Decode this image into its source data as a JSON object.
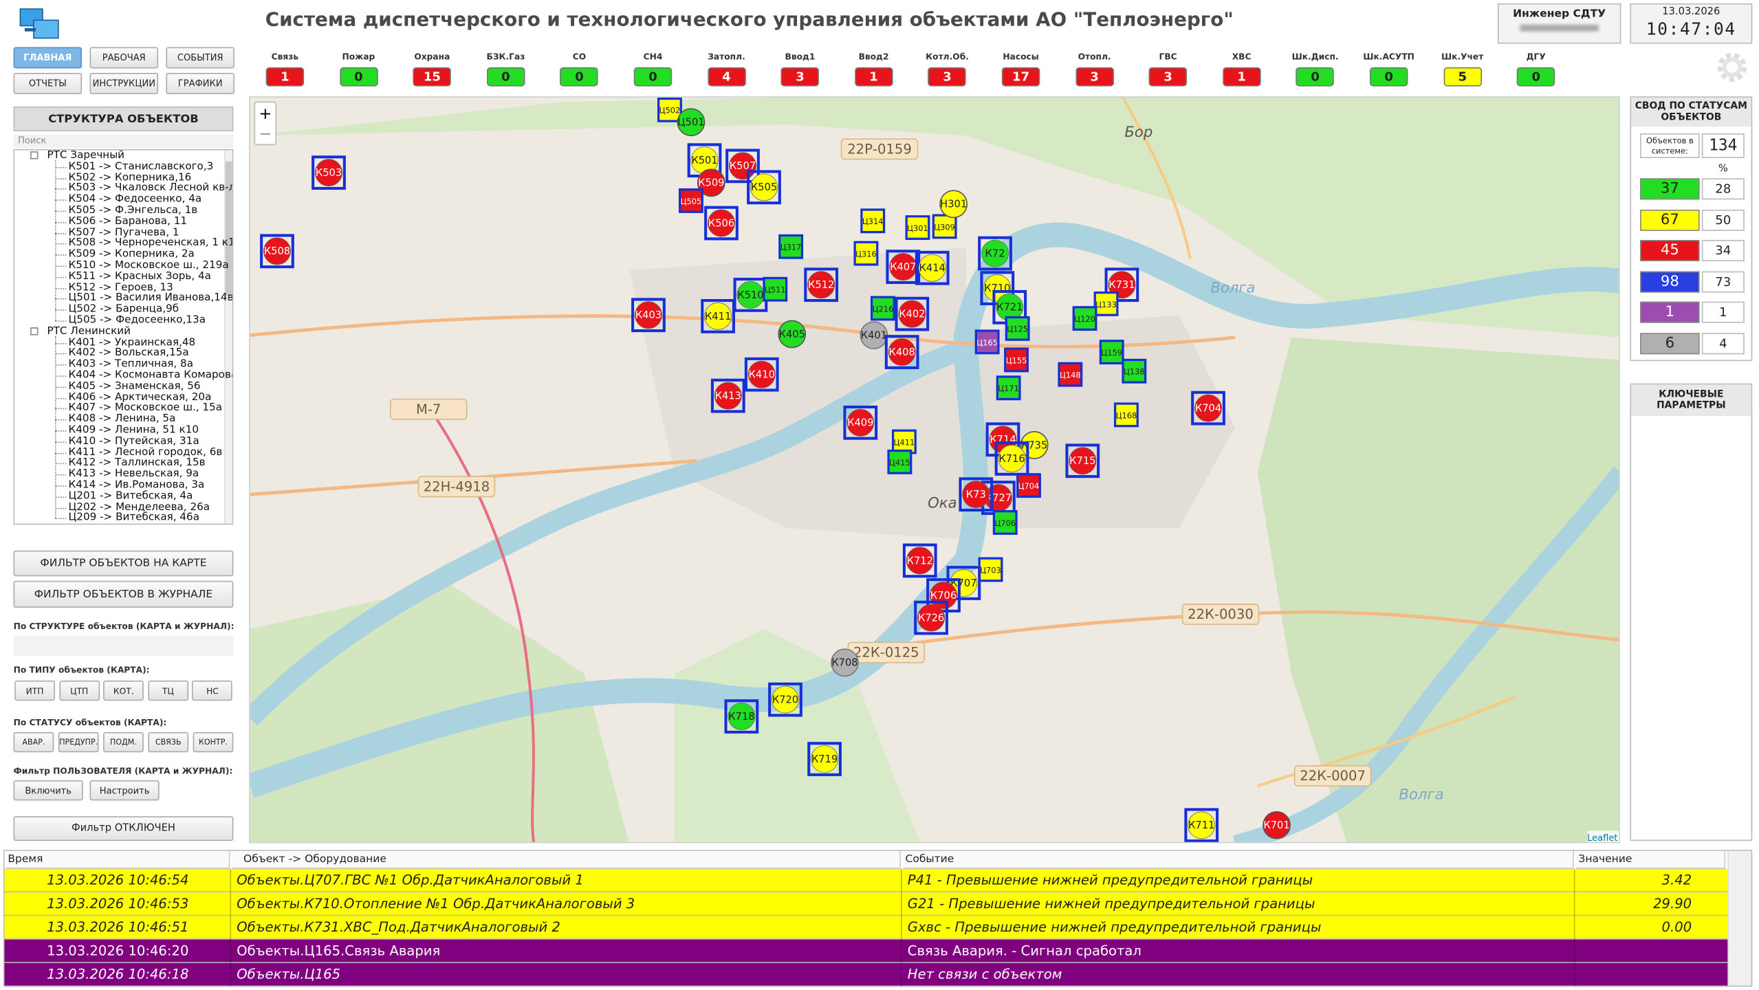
{
  "header": {
    "title": "Система диспетчерского и технологического управления объектами АО \"Теплоэнерго\"",
    "user_role": "Инженер СДТУ",
    "date": "13.03.2026",
    "time": "10:47:04"
  },
  "nav": [
    "ГЛАВНАЯ",
    "РАБОЧАЯ",
    "СОБЫТИЯ",
    "ОТЧЕТЫ",
    "ИНСТРУКЦИИ",
    "ГРАФИКИ"
  ],
  "indicators": [
    {
      "label": "Связь",
      "value": 1,
      "color": "#e8141b"
    },
    {
      "label": "Пожар",
      "value": 0,
      "color": "#22dd22"
    },
    {
      "label": "Охрана",
      "value": 15,
      "color": "#e8141b"
    },
    {
      "label": "БЗК.Газ",
      "value": 0,
      "color": "#22dd22"
    },
    {
      "label": "СО",
      "value": 0,
      "color": "#22dd22"
    },
    {
      "label": "СН4",
      "value": 0,
      "color": "#22dd22"
    },
    {
      "label": "Затопл.",
      "value": 4,
      "color": "#e8141b"
    },
    {
      "label": "Ввод1",
      "value": 3,
      "color": "#e8141b"
    },
    {
      "label": "Ввод2",
      "value": 1,
      "color": "#e8141b"
    },
    {
      "label": "Котл.Об.",
      "value": 3,
      "color": "#e8141b"
    },
    {
      "label": "Насосы",
      "value": 17,
      "color": "#e8141b"
    },
    {
      "label": "Отопл.",
      "value": 3,
      "color": "#e8141b"
    },
    {
      "label": "ГВС",
      "value": 3,
      "color": "#e8141b"
    },
    {
      "label": "ХВС",
      "value": 1,
      "color": "#e8141b"
    },
    {
      "label": "Шк.Дисп.",
      "value": 0,
      "color": "#22dd22"
    },
    {
      "label": "Шк.АСУТП",
      "value": 0,
      "color": "#22dd22"
    },
    {
      "label": "Шк.Учет",
      "value": 5,
      "color": "#ffff00"
    },
    {
      "label": "ДГУ",
      "value": 0,
      "color": "#22dd22"
    }
  ],
  "structure": {
    "title": "СТРУКТУРА ОБЪЕКТОВ",
    "search_placeholder": "Поиск",
    "groups": [
      {
        "name": "РТС Заречный",
        "items": [
          "К501 -> Станиславского,3",
          "К502 -> Коперника,16",
          "К503 -> Чкаловск Лесной кв-л",
          "К504 -> Федосеенко, 4а",
          "К505 -> Ф.Энгельса, 1в",
          "К506 -> Баранова, 11",
          "К507 -> Пугачева, 1",
          "К508 -> Чернореченская, 1 к1",
          "К509 -> Коперника, 2а",
          "К510 -> Московское ш., 219а",
          "К511 -> Красных Зорь, 4а",
          "К512 -> Героев, 13",
          "Ц501 -> Василия Иванова,14в",
          "Ц502 -> Баренца,9б",
          "Ц505 -> Федосеенко,13а"
        ]
      },
      {
        "name": "РТС Ленинский",
        "items": [
          "К401 -> Украинская,48",
          "К402 -> Вольская,15а",
          "К403 -> Тепличная, 8а",
          "К404 -> Космонавта Комарова",
          "К405 -> Знаменская, 56",
          "К406 -> Арктическая, 20а",
          "К407 -> Московское ш., 15а",
          "К408 -> Ленина, 5а",
          "К409 -> Ленина, 51 к10",
          "К410 -> Путейская, 31а",
          "К411 -> Лесной городок, 6в",
          "К412 -> Таллинская, 15в",
          "К413 -> Невельская, 9а",
          "К414 -> Ив.Романова, 3а",
          "Ц201 -> Витебская, 4а",
          "Ц202 -> Менделеева, 26а",
          "Ц209 -> Витебская, 46а"
        ]
      }
    ]
  },
  "filters": {
    "map_filter": "ФИЛЬТР ОБЪЕКТОВ НА КАРТЕ",
    "log_filter": "ФИЛЬТР ОБЪЕКТОВ В ЖУРНАЛЕ",
    "structure_label": "По СТРУКТУРЕ объектов (КАРТА и ЖУРНАЛ):",
    "type_label": "По ТИПУ объектов (КАРТА):",
    "type_buttons": [
      "ИТП",
      "ЦТП",
      "КОТ.",
      "ТЦ",
      "НС"
    ],
    "status_label": "По СТАТУСУ объектов (КАРТА):",
    "status_buttons": [
      "АВАР.",
      "ПРЕДУПР.",
      "ПОДМ.",
      "СВЯЗЬ",
      "КОНТР."
    ],
    "user_label": "Фильтр ПОЛЬЗОВАТЕЛЯ (КАРТА и ЖУРНАЛ):",
    "user_buttons": [
      "Включить",
      "Настроить"
    ],
    "state": "Фильтр ОТКЛЮЧЕН"
  },
  "map": {
    "zoom_in": "+",
    "zoom_out": "−",
    "attribution": "Leaflet",
    "labels": [
      "22Р-0159",
      "Бор",
      "М-7",
      "22Н-4918",
      "Волга",
      "Ока",
      "22К-0030",
      "22К-0125",
      "22К-0007",
      "Волга"
    ],
    "markers": [
      {
        "label": "К503",
        "color": "#e8141b"
      },
      {
        "label": "К508",
        "color": "#e8141b"
      },
      {
        "label": "Ц502",
        "color": "#ffff00"
      },
      {
        "label": "Ц501",
        "color": "#22dd22"
      },
      {
        "label": "К501",
        "color": "#ffff00"
      },
      {
        "label": "К507",
        "color": "#e8141b"
      },
      {
        "label": "К509",
        "color": "#e8141b"
      },
      {
        "label": "Ц505",
        "color": "#e8141b"
      },
      {
        "label": "К505",
        "color": "#ffff00"
      },
      {
        "label": "К506",
        "color": "#e8141b"
      },
      {
        "label": "Ц317",
        "color": "#22dd22"
      },
      {
        "label": "Ц314",
        "color": "#ffff00"
      },
      {
        "label": "Ц301",
        "color": "#ffff00"
      },
      {
        "label": "Ц309",
        "color": "#ffff00"
      },
      {
        "label": "Н301",
        "color": "#ffff00"
      },
      {
        "label": "Ц316",
        "color": "#ffff00"
      },
      {
        "label": "К407",
        "color": "#e8141b"
      },
      {
        "label": "К414",
        "color": "#ffff00"
      },
      {
        "label": "К510",
        "color": "#22dd22"
      },
      {
        "label": "Ц511",
        "color": "#22dd22"
      },
      {
        "label": "К512",
        "color": "#e8141b"
      },
      {
        "label": "К403",
        "color": "#e8141b"
      },
      {
        "label": "К411",
        "color": "#ffff00"
      },
      {
        "label": "К405",
        "color": "#22dd22"
      },
      {
        "label": "К401",
        "color": "#b0b0b0"
      },
      {
        "label": "Ц216",
        "color": "#22dd22"
      },
      {
        "label": "К402",
        "color": "#e8141b"
      },
      {
        "label": "К408",
        "color": "#e8141b"
      },
      {
        "label": "К410",
        "color": "#e8141b"
      },
      {
        "label": "К413",
        "color": "#e8141b"
      },
      {
        "label": "К409",
        "color": "#e8141b"
      },
      {
        "label": "Ц411",
        "color": "#ffff00"
      },
      {
        "label": "Ц415",
        "color": "#22dd22"
      },
      {
        "label": "К72",
        "color": "#22dd22"
      },
      {
        "label": "К710",
        "color": "#ffff00"
      },
      {
        "label": "К721",
        "color": "#22dd22"
      },
      {
        "label": "Ц165",
        "color": "#9b4db0"
      },
      {
        "label": "К731",
        "color": "#e8141b"
      },
      {
        "label": "Ц133",
        "color": "#ffff00"
      },
      {
        "label": "Ц120",
        "color": "#22dd22"
      },
      {
        "label": "Ц159",
        "color": "#22dd22"
      },
      {
        "label": "Ц138",
        "color": "#22dd22"
      },
      {
        "label": "Ц148",
        "color": "#e8141b"
      },
      {
        "label": "Ц171",
        "color": "#22dd22"
      },
      {
        "label": "Ц155",
        "color": "#e8141b"
      },
      {
        "label": "Ц125",
        "color": "#22dd22"
      },
      {
        "label": "К704",
        "color": "#e8141b"
      },
      {
        "label": "Ц168",
        "color": "#ffff00"
      },
      {
        "label": "К714",
        "color": "#e8141b"
      },
      {
        "label": "К735",
        "color": "#ffff00"
      },
      {
        "label": "К716",
        "color": "#ffff00"
      },
      {
        "label": "К715",
        "color": "#e8141b"
      },
      {
        "label": "Ц704",
        "color": "#e8141b"
      },
      {
        "label": "К727",
        "color": "#e8141b"
      },
      {
        "label": "К73",
        "color": "#e8141b"
      },
      {
        "label": "Ц706",
        "color": "#22dd22"
      },
      {
        "label": "К712",
        "color": "#e8141b"
      },
      {
        "label": "Ц703",
        "color": "#ffff00"
      },
      {
        "label": "К707",
        "color": "#ffff00"
      },
      {
        "label": "К706",
        "color": "#e8141b"
      },
      {
        "label": "К726",
        "color": "#e8141b"
      },
      {
        "label": "К708",
        "color": "#b0b0b0"
      },
      {
        "label": "К718",
        "color": "#22dd22"
      },
      {
        "label": "К720",
        "color": "#ffff00"
      },
      {
        "label": "К719",
        "color": "#ffff00"
      },
      {
        "label": "К711",
        "color": "#ffff00"
      },
      {
        "label": "К701",
        "color": "#e8141b"
      }
    ]
  },
  "summary": {
    "title": "СВОД ПО СТАТУСАМ ОБЪЕКТОВ",
    "total_label": "Объектов в системе:",
    "total": 134,
    "percent_header": "%",
    "rows": [
      {
        "count": 37,
        "percent": 28,
        "color": "#22dd22"
      },
      {
        "count": 67,
        "percent": 50,
        "color": "#ffff00"
      },
      {
        "count": 45,
        "percent": 34,
        "color": "#e8141b"
      },
      {
        "count": 98,
        "percent": 73,
        "color": "#2a3fe0"
      },
      {
        "count": 1,
        "percent": 1,
        "color": "#9b4db0"
      },
      {
        "count": 6,
        "percent": 4,
        "color": "#b0b0b0"
      }
    ],
    "key_params_title": "КЛЮЧЕВЫЕ ПАРАМЕТРЫ"
  },
  "log": {
    "columns": [
      "Время",
      "Объект -> Оборудование",
      "Событие",
      "Значение"
    ],
    "rows": [
      {
        "cells": [
          "13.03.2026 10:46:54",
          "Объекты.Ц707.ГВС №1 Обр.ДатчикАналоговый 1",
          "Р41 - Превышение нижней предупредительной границы",
          "3.42"
        ],
        "color": "#ffff00"
      },
      {
        "cells": [
          "13.03.2026 10:46:53",
          "Объекты.К710.Отопление №1 Обр.ДатчикАналоговый 3",
          "G21 - Превышение нижней предупредительной границы",
          "29.90"
        ],
        "color": "#ffff00"
      },
      {
        "cells": [
          "13.03.2026 10:46:51",
          "Объекты.К731.ХВС_Под.ДатчикАналоговый 2",
          "Gxвс - Превышение нижней предупредительной границы",
          "0.00"
        ],
        "color": "#ffff00"
      },
      {
        "cells": [
          "13.03.2026 10:46:20",
          "Объекты.Ц165.Связь Авария",
          "Связь Авария. - Сигнал сработал"
        ],
        "color": "#800080"
      },
      {
        "cells": [
          "13.03.2026 10:46:18",
          "Объекты.Ц165",
          "Нет связи с объектом"
        ],
        "color": "#800080"
      }
    ]
  }
}
